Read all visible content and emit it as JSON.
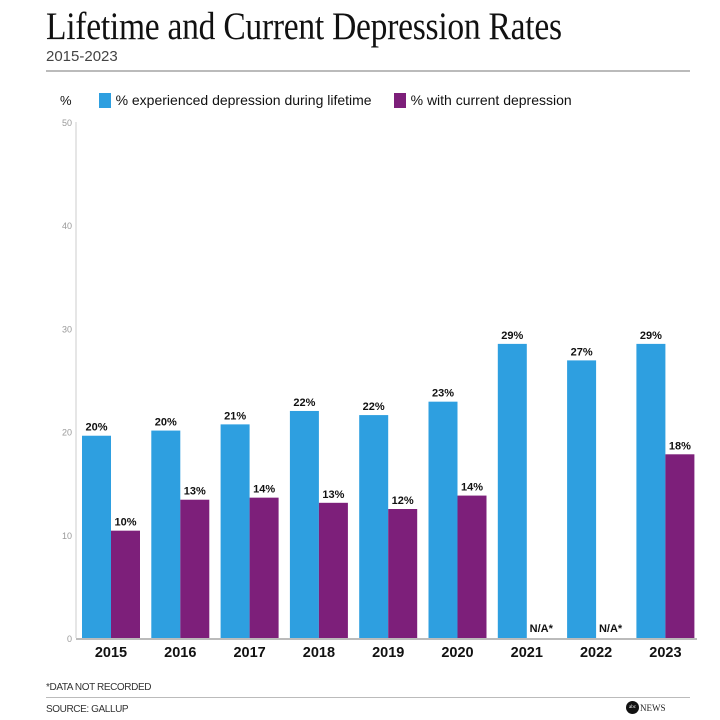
{
  "chart_data": {
    "type": "bar",
    "title": "Lifetime and Current Depression Rates",
    "subtitle": "2015-2023",
    "ylabel": "%",
    "ylim": [
      0,
      50
    ],
    "yticks": [
      0,
      10,
      20,
      30,
      40,
      50
    ],
    "grid": false,
    "legend_position": "top",
    "categories": [
      "2015",
      "2016",
      "2017",
      "2018",
      "2019",
      "2020",
      "2021",
      "2022",
      "2023"
    ],
    "series": [
      {
        "name": "% experienced depression during lifetime",
        "color": "#2e9fe0",
        "values": [
          19.6,
          20.1,
          20.7,
          22.0,
          21.6,
          22.9,
          28.5,
          26.9,
          28.5
        ],
        "labels": [
          "20%",
          "20%",
          "21%",
          "22%",
          "22%",
          "23%",
          "29%",
          "27%",
          "29%"
        ]
      },
      {
        "name": "% with current depression",
        "color": "#7d1f7a",
        "values": [
          10.4,
          13.4,
          13.6,
          13.1,
          12.5,
          13.8,
          null,
          null,
          17.8
        ],
        "labels": [
          "10%",
          "13%",
          "14%",
          "13%",
          "12%",
          "14%",
          "N/A*",
          "N/A*",
          "18%"
        ]
      }
    ],
    "footnote": "*DATA NOT RECORDED",
    "source": "SOURCE: GALLUP"
  },
  "logo": {
    "text": "NEWS",
    "mark": "abc"
  }
}
